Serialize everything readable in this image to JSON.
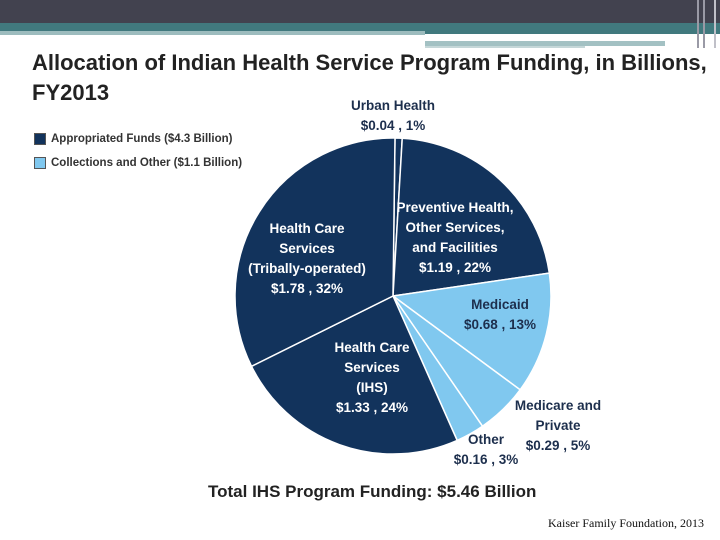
{
  "chart_data": {
    "type": "pie",
    "title": "Allocation of Indian Health Service Program Funding, in Billions, FY2013",
    "unit": "Billions USD",
    "legend": [
      {
        "label": "Appropriated Funds ($4.3 Billion)",
        "color": "#12335c"
      },
      {
        "label": "Collections and Other ($1.1 Billion)",
        "color": "#80c8ef"
      }
    ],
    "legend_position": "top-left",
    "slices": [
      {
        "name": "Urban Health",
        "value": 0.04,
        "percent": "1%",
        "label_value": "$0.04 , 1%",
        "group": 0
      },
      {
        "name": "Preventive Health, Other Services, and Facilities",
        "value": 1.19,
        "percent": "22%",
        "label_value": "$1.19 , 22%",
        "group": 0
      },
      {
        "name": "Medicaid",
        "value": 0.68,
        "percent": "13%",
        "label_value": "$0.68 , 13%",
        "group": 1
      },
      {
        "name": "Medicare and Private",
        "value": 0.29,
        "percent": "5%",
        "label_value": "$0.29 , 5%",
        "group": 1
      },
      {
        "name": "Other",
        "value": 0.16,
        "percent": "3%",
        "label_value": "$0.16 , 3%",
        "group": 1
      },
      {
        "name": "Health Care Services (IHS)",
        "value": 1.33,
        "percent": "24%",
        "label_value": "$1.33 , 24%",
        "group": 0
      },
      {
        "name": "Health Care Services (Tribally-operated)",
        "value": 1.78,
        "percent": "32%",
        "label_value": "$1.78 , 32%",
        "group": 0
      }
    ],
    "label_lines": {
      "urban": [
        "Urban Health"
      ],
      "preventive": [
        "Preventive Health,",
        "Other Services,",
        "and Facilities"
      ],
      "medicaid": [
        "Medicaid"
      ],
      "medicare": [
        "Medicare and",
        "Private"
      ],
      "other": [
        "Other"
      ],
      "ihs": [
        "Health Care",
        "Services",
        "(IHS)"
      ],
      "tribal": [
        "Health Care",
        "Services",
        "(Tribally-operated)"
      ]
    },
    "total": "Total IHS Program Funding: $5.46 Billion"
  },
  "source": "Kaiser Family Foundation, 2013"
}
